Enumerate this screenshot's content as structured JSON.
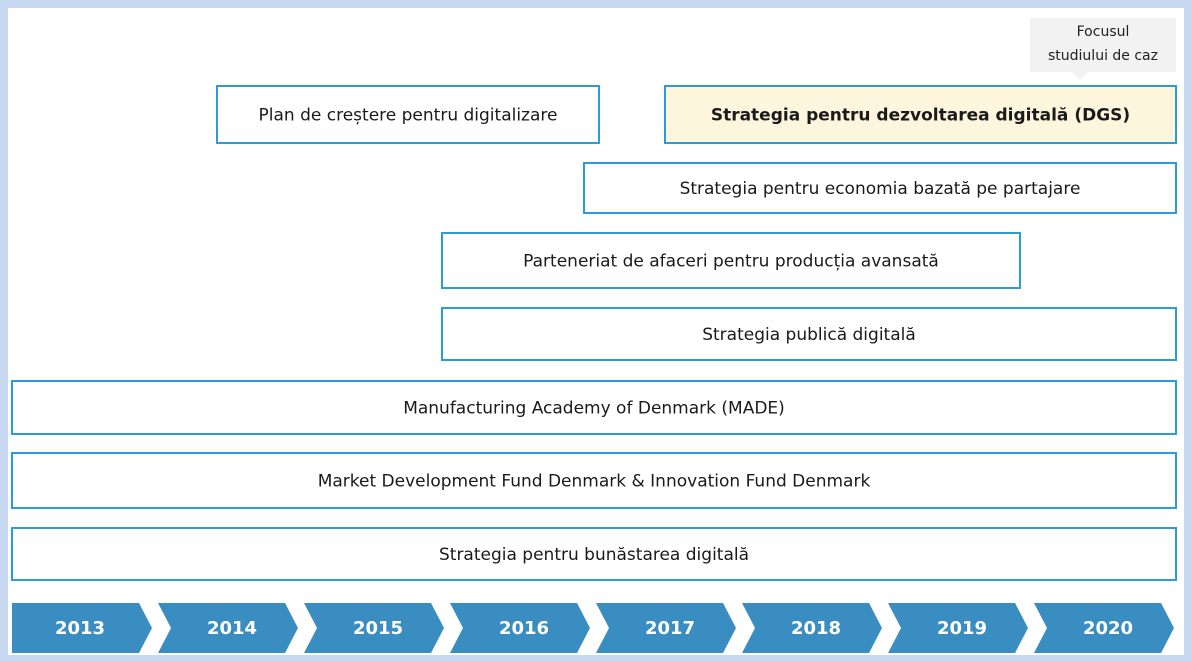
{
  "callout": {
    "lines": [
      "Focusul",
      "studiului de caz"
    ]
  },
  "initiatives": [
    {
      "label": "Plan de creștere pentru digitalizare"
    },
    {
      "label": "Strategia pentru dezvoltarea digitală (DGS)"
    },
    {
      "label": "Strategia pentru economia bazată pe partajare"
    },
    {
      "label": "Parteneriat de afaceri pentru producția avansată"
    },
    {
      "label": "Strategia publică digitală"
    },
    {
      "label": "Manufacturing Academy of Denmark (MADE)"
    },
    {
      "label": "Market Development Fund Denmark & Innovation Fund Denmark"
    },
    {
      "label": "Strategia pentru bunăstarea digitală"
    }
  ],
  "timeline": {
    "years": [
      "2013",
      "2014",
      "2015",
      "2016",
      "2017",
      "2018",
      "2019",
      "2020"
    ]
  }
}
